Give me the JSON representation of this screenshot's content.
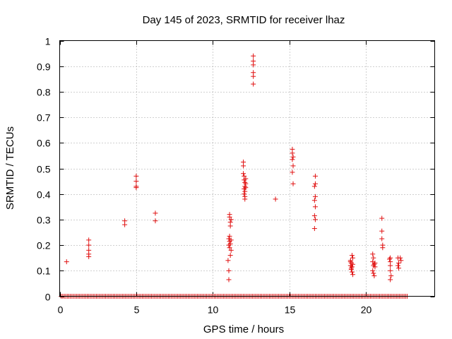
{
  "chart_data": {
    "type": "scatter",
    "title": "Day 145 of 2023, SRMTID for receiver lhaz",
    "xlabel": "GPS time / hours",
    "ylabel": "SRMTID / TECUs",
    "xlim": [
      0,
      24.5
    ],
    "ylim": [
      0,
      1
    ],
    "xticks": [
      0,
      5,
      10,
      15,
      20
    ],
    "xtick_labels": [
      "0",
      "5",
      "10",
      "15",
      "20"
    ],
    "yticks": [
      0,
      0.1,
      0.2,
      0.3,
      0.4,
      0.5,
      0.6,
      0.7,
      0.8,
      0.9,
      1
    ],
    "ytick_labels": [
      "0",
      "0.1",
      "0.2",
      "0.3",
      "0.4",
      "0.5",
      "0.6",
      "0.7",
      "0.8",
      "0.9",
      "1"
    ],
    "grid": true,
    "marker": "+",
    "series": [
      {
        "name": "SRMTID",
        "color": "#e01010",
        "baseline": {
          "y": 0,
          "x_start": 0.1,
          "x_end": 22.75,
          "step": 0.1
        },
        "points": [
          [
            0.45,
            0.135
          ],
          [
            1.9,
            0.22
          ],
          [
            1.9,
            0.2
          ],
          [
            1.9,
            0.18
          ],
          [
            1.9,
            0.165
          ],
          [
            1.9,
            0.155
          ],
          [
            4.25,
            0.295
          ],
          [
            4.25,
            0.28
          ],
          [
            5.0,
            0.47
          ],
          [
            5.0,
            0.45
          ],
          [
            5.0,
            0.43
          ],
          [
            5.0,
            0.425
          ],
          [
            6.25,
            0.325
          ],
          [
            6.25,
            0.295
          ],
          [
            11.0,
            0.14
          ],
          [
            11.05,
            0.1
          ],
          [
            11.05,
            0.065
          ],
          [
            11.1,
            0.32
          ],
          [
            11.1,
            0.31
          ],
          [
            11.15,
            0.29
          ],
          [
            11.15,
            0.275
          ],
          [
            11.1,
            0.235
          ],
          [
            11.05,
            0.225
          ],
          [
            11.1,
            0.215
          ],
          [
            11.15,
            0.205
          ],
          [
            11.05,
            0.2
          ],
          [
            11.1,
            0.19
          ],
          [
            11.15,
            0.16
          ],
          [
            11.2,
            0.3
          ],
          [
            11.2,
            0.22
          ],
          [
            11.2,
            0.18
          ],
          [
            12.0,
            0.525
          ],
          [
            12.0,
            0.51
          ],
          [
            12.0,
            0.48
          ],
          [
            12.05,
            0.47
          ],
          [
            12.05,
            0.455
          ],
          [
            12.1,
            0.445
          ],
          [
            12.1,
            0.43
          ],
          [
            12.05,
            0.42
          ],
          [
            12.1,
            0.41
          ],
          [
            12.05,
            0.4
          ],
          [
            12.1,
            0.39
          ],
          [
            12.1,
            0.38
          ],
          [
            12.15,
            0.46
          ],
          [
            12.15,
            0.44
          ],
          [
            12.15,
            0.425
          ],
          [
            12.65,
            0.94
          ],
          [
            12.65,
            0.92
          ],
          [
            12.65,
            0.905
          ],
          [
            12.65,
            0.875
          ],
          [
            12.65,
            0.86
          ],
          [
            12.65,
            0.83
          ],
          [
            14.1,
            0.38
          ],
          [
            15.2,
            0.575
          ],
          [
            15.2,
            0.56
          ],
          [
            15.25,
            0.545
          ],
          [
            15.2,
            0.535
          ],
          [
            15.25,
            0.51
          ],
          [
            15.2,
            0.485
          ],
          [
            15.25,
            0.44
          ],
          [
            16.7,
            0.47
          ],
          [
            16.7,
            0.44
          ],
          [
            16.65,
            0.43
          ],
          [
            16.7,
            0.39
          ],
          [
            16.65,
            0.375
          ],
          [
            16.7,
            0.35
          ],
          [
            16.65,
            0.315
          ],
          [
            16.7,
            0.3
          ],
          [
            16.65,
            0.265
          ],
          [
            19.0,
            0.14
          ],
          [
            19.05,
            0.13
          ],
          [
            19.0,
            0.12
          ],
          [
            19.1,
            0.115
          ],
          [
            19.05,
            0.105
          ],
          [
            19.1,
            0.095
          ],
          [
            19.15,
            0.085
          ],
          [
            19.1,
            0.16
          ],
          [
            19.15,
            0.15
          ],
          [
            19.0,
            0.135
          ],
          [
            19.05,
            0.11
          ],
          [
            19.15,
            0.125
          ],
          [
            20.45,
            0.165
          ],
          [
            20.5,
            0.15
          ],
          [
            20.45,
            0.135
          ],
          [
            20.55,
            0.125
          ],
          [
            20.5,
            0.12
          ],
          [
            20.45,
            0.1
          ],
          [
            20.5,
            0.09
          ],
          [
            20.55,
            0.08
          ],
          [
            20.6,
            0.13
          ],
          [
            20.6,
            0.115
          ],
          [
            21.05,
            0.305
          ],
          [
            21.05,
            0.255
          ],
          [
            21.05,
            0.225
          ],
          [
            21.1,
            0.2
          ],
          [
            21.1,
            0.19
          ],
          [
            21.6,
            0.15
          ],
          [
            21.6,
            0.135
          ],
          [
            21.6,
            0.12
          ],
          [
            21.6,
            0.1
          ],
          [
            21.65,
            0.08
          ],
          [
            21.6,
            0.065
          ],
          [
            21.55,
            0.145
          ],
          [
            22.1,
            0.15
          ],
          [
            22.15,
            0.13
          ],
          [
            22.1,
            0.12
          ],
          [
            22.15,
            0.11
          ],
          [
            22.3,
            0.14
          ],
          [
            22.25,
            0.15
          ]
        ]
      }
    ]
  }
}
